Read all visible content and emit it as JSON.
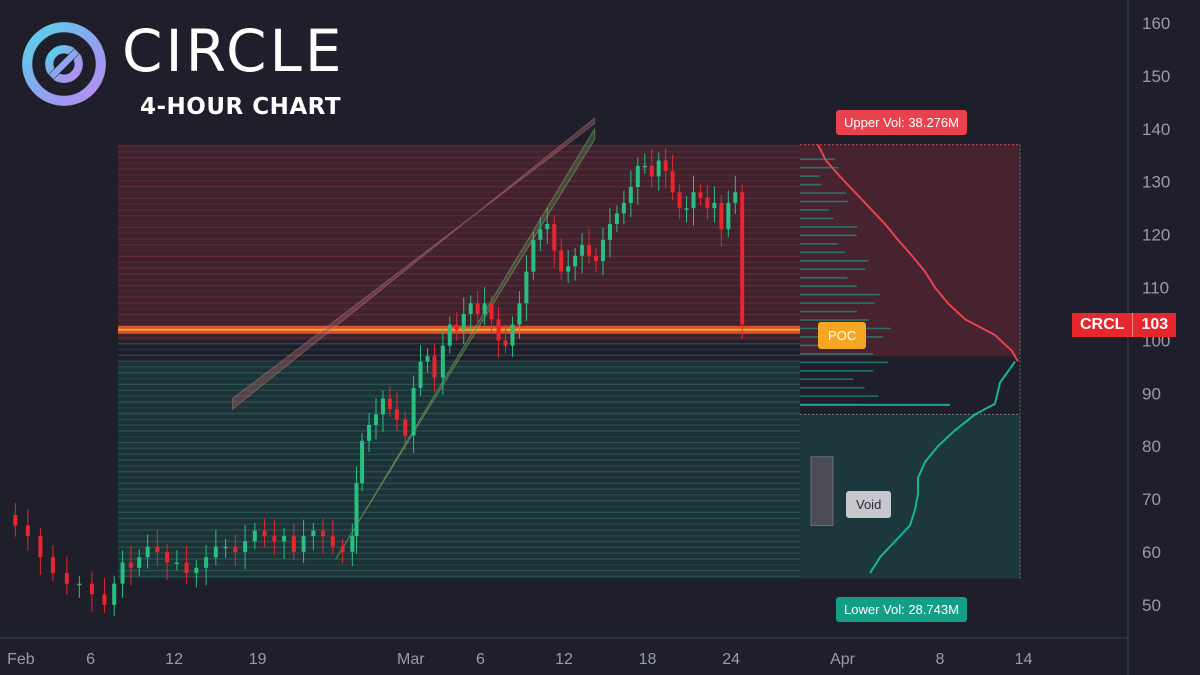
{
  "header": {
    "brand": "CIRCLE",
    "subtitle": "4-HOUR CHART"
  },
  "colors": {
    "bg": "#1e1f2b",
    "up": "#27c081",
    "down": "#e8262e",
    "poc": "#f5a623",
    "upper_zone": "#4a2430",
    "lower_zone": "#1c3a3d",
    "channel_upper": "#d98a8a",
    "channel_lower": "#9bd67a"
  },
  "tags": {
    "upper_vol": "Upper Vol: 38.276M",
    "lower_vol": "Lower Vol: 28.743M",
    "poc": "POC",
    "void": "Void",
    "ticker_symbol": "CRCL",
    "ticker_price": "103"
  },
  "chart_data": {
    "type": "candlestick",
    "title": "",
    "y_ticks": [
      50,
      60,
      70,
      80,
      90,
      100,
      110,
      120,
      130,
      140,
      150,
      160
    ],
    "ylim": [
      46,
      163
    ],
    "x_ticks": [
      "Feb",
      "6",
      "12",
      "19",
      "Mar",
      "6",
      "12",
      "18",
      "24",
      "Apr",
      "8",
      "14"
    ],
    "x_tick_days": [
      1,
      6,
      12,
      18,
      29,
      34,
      40,
      46,
      52,
      60,
      67,
      73
    ],
    "xlim": [
      -0.5,
      80.5
    ],
    "last_price": 103,
    "poc_price": 102,
    "upper_zone": [
      100,
      137
    ],
    "lower_zone": [
      55,
      96
    ],
    "void_zone": [
      65,
      78
    ],
    "upper_vol": "38.276M",
    "lower_vol": "28.743M",
    "channel": {
      "upper": [
        [
          16.2,
          87
        ],
        [
          42.2,
          142
        ]
      ],
      "upper_inner": [
        [
          16.2,
          89
        ],
        [
          42.2,
          141
        ]
      ],
      "lower": [
        [
          23.6,
          58.5
        ],
        [
          42.2,
          140
        ]
      ],
      "lower_inner": [
        [
          23.8,
          59.5
        ],
        [
          42.2,
          138
        ]
      ]
    },
    "closes": [
      [
        -0.3,
        67
      ],
      [
        0.6,
        65
      ],
      [
        1.5,
        63
      ],
      [
        2.4,
        59
      ],
      [
        3.3,
        56
      ],
      [
        4.3,
        54
      ],
      [
        5.2,
        54
      ],
      [
        6.1,
        52
      ],
      [
        7.0,
        50
      ],
      [
        7.7,
        54
      ],
      [
        8.3,
        58
      ],
      [
        8.9,
        57
      ],
      [
        9.5,
        59
      ],
      [
        10.1,
        61
      ],
      [
        10.8,
        60
      ],
      [
        11.5,
        58
      ],
      [
        12.2,
        58
      ],
      [
        12.9,
        56
      ],
      [
        13.6,
        57
      ],
      [
        14.3,
        59
      ],
      [
        15.0,
        61
      ],
      [
        15.7,
        61
      ],
      [
        16.4,
        60
      ],
      [
        17.1,
        62
      ],
      [
        17.8,
        64
      ],
      [
        18.5,
        63
      ],
      [
        19.2,
        62
      ],
      [
        19.9,
        63
      ],
      [
        20.6,
        60
      ],
      [
        21.3,
        63
      ],
      [
        22.0,
        64
      ],
      [
        22.7,
        63
      ],
      [
        23.4,
        61
      ],
      [
        24.1,
        60
      ],
      [
        24.8,
        63
      ],
      [
        25.1,
        73
      ],
      [
        25.5,
        81
      ],
      [
        26.0,
        84
      ],
      [
        26.5,
        86
      ],
      [
        27.0,
        89
      ],
      [
        27.5,
        87
      ],
      [
        28.0,
        85
      ],
      [
        28.6,
        82
      ],
      [
        29.2,
        91
      ],
      [
        29.7,
        96
      ],
      [
        30.2,
        97
      ],
      [
        30.7,
        93
      ],
      [
        31.3,
        99
      ],
      [
        31.8,
        103
      ],
      [
        32.3,
        102
      ],
      [
        32.8,
        105
      ],
      [
        33.3,
        107
      ],
      [
        33.8,
        105
      ],
      [
        34.3,
        107
      ],
      [
        34.8,
        104
      ],
      [
        35.3,
        100
      ],
      [
        35.8,
        99
      ],
      [
        36.3,
        103
      ],
      [
        36.8,
        107
      ],
      [
        37.3,
        113
      ],
      [
        37.8,
        119
      ],
      [
        38.3,
        121
      ],
      [
        38.8,
        122
      ],
      [
        39.3,
        117
      ],
      [
        39.8,
        113
      ],
      [
        40.3,
        114
      ],
      [
        40.8,
        116
      ],
      [
        41.3,
        118
      ],
      [
        41.8,
        116
      ],
      [
        42.3,
        115
      ],
      [
        42.8,
        119
      ],
      [
        43.3,
        122
      ],
      [
        43.8,
        124
      ],
      [
        44.3,
        126
      ],
      [
        44.8,
        129
      ],
      [
        45.3,
        133
      ],
      [
        45.8,
        133
      ],
      [
        46.3,
        131
      ],
      [
        46.8,
        134
      ],
      [
        47.3,
        132
      ],
      [
        47.8,
        128
      ],
      [
        48.3,
        125
      ],
      [
        48.8,
        125
      ],
      [
        49.3,
        128
      ],
      [
        49.8,
        127
      ],
      [
        50.3,
        125
      ],
      [
        50.8,
        126
      ],
      [
        51.3,
        121
      ],
      [
        51.8,
        126
      ],
      [
        52.3,
        128
      ],
      [
        52.8,
        103
      ]
    ]
  }
}
